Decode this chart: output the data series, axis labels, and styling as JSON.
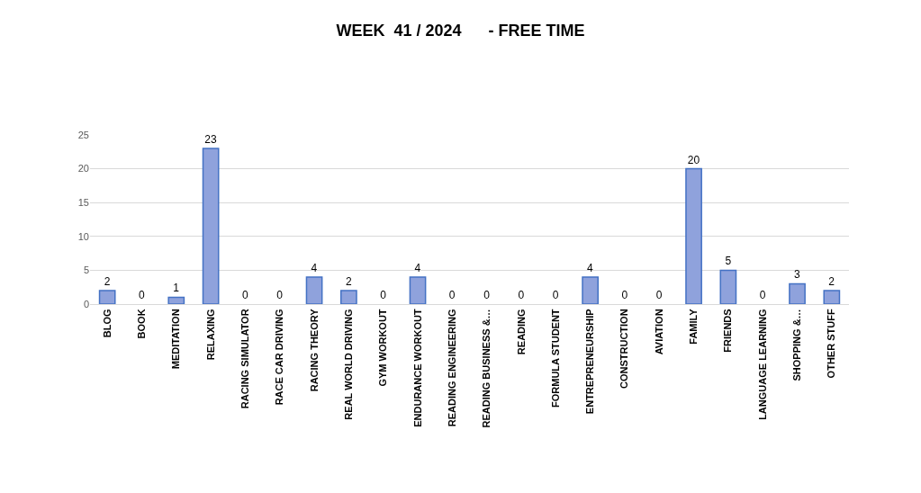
{
  "chart_data": {
    "type": "bar",
    "title": "WEEK  41 / 2024      - FREE TIME",
    "categories": [
      "BLOG",
      "BOOK",
      "MEDITATION",
      "RELAXING",
      "RACING SIMULATOR",
      "RACE CAR DRIVING",
      "RACING THEORY",
      "REAL WORLD DRIVING",
      "GYM WORKOUT",
      "ENDURANCE WORKOUT",
      "READING ENGINEERING",
      "READING BUSINESS &…",
      "READING",
      "FORMULA STUDENT",
      "ENTREPRENEURSHIP",
      "CONSTRUCTION",
      "AVIATION",
      "FAMILY",
      "FRIENDS",
      "LANGUAGE LEARNING",
      "SHOPPING &…",
      "OTHER STUFF"
    ],
    "values": [
      2,
      0,
      1,
      23,
      0,
      0,
      4,
      2,
      0,
      4,
      0,
      0,
      0,
      0,
      4,
      0,
      0,
      20,
      5,
      0,
      3,
      2
    ],
    "color": "#8fa2dc",
    "ylim": [
      0,
      25
    ],
    "yticks": [
      0,
      5,
      10,
      15,
      20,
      25
    ],
    "grid": "y",
    "data_labels": true,
    "legend": false
  }
}
